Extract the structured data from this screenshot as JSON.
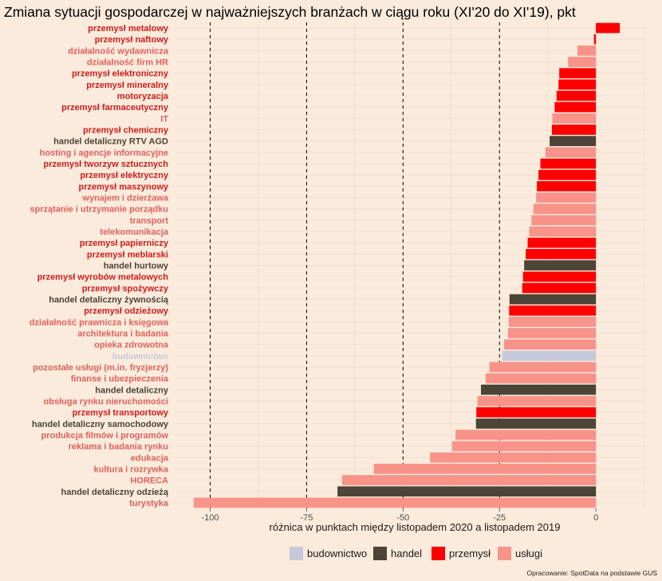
{
  "colors": {
    "background": "#faebdc",
    "budownictwo": "#c5c9da",
    "handel": "#4b4437",
    "przemysl": "#ff0000",
    "uslugi": "#f8938a",
    "label_budownictwo": "#c5c9da",
    "label_handel": "#4b4437",
    "label_przemysl": "#d11b1b",
    "label_uslugi": "#e0605c"
  },
  "caption": "Opracowanie: SpotData na podstawie GUS",
  "chart_data": {
    "type": "bar",
    "orientation": "horizontal",
    "title": "Zmiana sytuacji gospodarczej w najważniejszych branżach w ciągu roku (XI'20 do XI'19), pkt",
    "xlabel": "różnica w punktach między listopadem 2020 a listopadem 2019",
    "xlim": [
      -109,
      13
    ],
    "xticks": [
      -100,
      -75,
      -50,
      -25,
      0
    ],
    "xtick_labels": [
      "-100",
      "-75",
      "-50",
      "-25",
      "0"
    ],
    "reference_lines": [
      -100,
      -75,
      -50,
      -25
    ],
    "legend": [
      {
        "key": "budownictwo",
        "label": "budownictwo"
      },
      {
        "key": "handel",
        "label": "handel"
      },
      {
        "key": "przemysl",
        "label": "przemysł"
      },
      {
        "key": "uslugi",
        "label": "usługi"
      }
    ],
    "legend_position": "bottom",
    "categories": [
      {
        "label": "przemysł metalowy",
        "group": "przemysl",
        "value": 6.2
      },
      {
        "label": "przemysł naftowy",
        "group": "przemysl",
        "value": -0.5
      },
      {
        "label": "działalność wydawnicza",
        "group": "uslugi",
        "value": -4.8
      },
      {
        "label": "działalność firm HR",
        "group": "uslugi",
        "value": -7.2
      },
      {
        "label": "przemysł elektroniczny",
        "group": "przemysl",
        "value": -9.5
      },
      {
        "label": "przemysł mineralny",
        "group": "przemysl",
        "value": -9.7
      },
      {
        "label": "motoryzacja",
        "group": "przemysl",
        "value": -10.2
      },
      {
        "label": "przemysł farmaceutyczny",
        "group": "przemysl",
        "value": -10.7
      },
      {
        "label": "IT",
        "group": "uslugi",
        "value": -11.3
      },
      {
        "label": "przemysł chemiczny",
        "group": "przemysl",
        "value": -11.4
      },
      {
        "label": "handel detaliczny RTV AGD",
        "group": "handel",
        "value": -12.0
      },
      {
        "label": "hosting i agencje informacyjne",
        "group": "uslugi",
        "value": -13.1
      },
      {
        "label": "przemysł tworzyw sztucznych",
        "group": "przemysl",
        "value": -14.4
      },
      {
        "label": "przemysł elektryczny",
        "group": "przemysl",
        "value": -14.9
      },
      {
        "label": "przemysł maszynowy",
        "group": "przemysl",
        "value": -15.3
      },
      {
        "label": "wynajem i dzierżawa",
        "group": "uslugi",
        "value": -15.5
      },
      {
        "label": "sprzątanie i utrzymanie porządku",
        "group": "uslugi",
        "value": -16.2
      },
      {
        "label": "transport",
        "group": "uslugi",
        "value": -16.7
      },
      {
        "label": "telekomunikacja",
        "group": "uslugi",
        "value": -17.3
      },
      {
        "label": "przemysł papierniczy",
        "group": "przemysl",
        "value": -17.7
      },
      {
        "label": "przemysł meblarski",
        "group": "przemysl",
        "value": -18.2
      },
      {
        "label": "handel hurtowy",
        "group": "handel",
        "value": -18.6
      },
      {
        "label": "przemysł wyrobów metalowych",
        "group": "przemysl",
        "value": -18.9
      },
      {
        "label": "przemysł spożywczy",
        "group": "przemysl",
        "value": -19.1
      },
      {
        "label": "handel detaliczny żywnością",
        "group": "handel",
        "value": -22.4
      },
      {
        "label": "przemysł odzieżowy",
        "group": "przemysl",
        "value": -22.5
      },
      {
        "label": "działalność prawnicza i księgowa",
        "group": "uslugi",
        "value": -22.6
      },
      {
        "label": "architektura i badania",
        "group": "uslugi",
        "value": -22.8
      },
      {
        "label": "opieka zdrowotna",
        "group": "uslugi",
        "value": -23.8
      },
      {
        "label": "budownictwo",
        "group": "budownictwo",
        "value": -24.3
      },
      {
        "label": "pozostałe usługi (m.in. fryzjerzy)",
        "group": "uslugi",
        "value": -27.6
      },
      {
        "label": "finanse i ubezpieczenia",
        "group": "uslugi",
        "value": -28.6
      },
      {
        "label": "handel detaliczny",
        "group": "handel",
        "value": -29.8
      },
      {
        "label": "obsługa rynku nieruchomości",
        "group": "uslugi",
        "value": -30.7
      },
      {
        "label": "przemysł transportowy",
        "group": "przemysl",
        "value": -31.0
      },
      {
        "label": "handel detaliczny samochodowy",
        "group": "handel",
        "value": -31.1
      },
      {
        "label": "produkcja filmów i programów",
        "group": "uslugi",
        "value": -36.4
      },
      {
        "label": "reklama i badania rynku",
        "group": "uslugi",
        "value": -37.3
      },
      {
        "label": "edukacja",
        "group": "uslugi",
        "value": -43.0
      },
      {
        "label": "kultura i rozrywka",
        "group": "uslugi",
        "value": -57.6
      },
      {
        "label": "HORECA",
        "group": "uslugi",
        "value": -65.8
      },
      {
        "label": "handel detaliczny odzieżą",
        "group": "handel",
        "value": -67.0
      },
      {
        "label": "turystyka",
        "group": "uslugi",
        "value": -104.3
      }
    ]
  }
}
